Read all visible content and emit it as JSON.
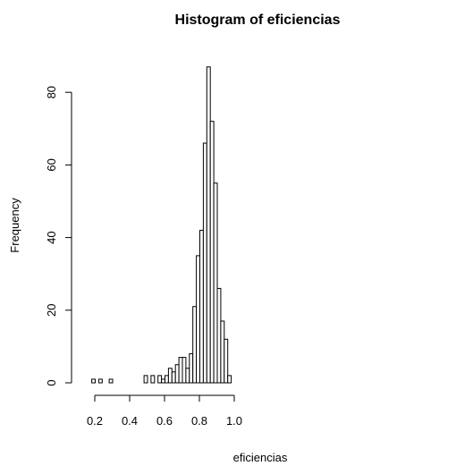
{
  "chart_data": {
    "type": "bar",
    "title": "Histogram of eficiencias",
    "xlabel": "eficiencias",
    "ylabel": "Frequency",
    "xlim": [
      0.18,
      0.98
    ],
    "ylim": [
      0,
      87
    ],
    "bin_width": 0.02,
    "bins": [
      {
        "x0": 0.18,
        "x1": 0.2,
        "count": 1
      },
      {
        "x0": 0.2,
        "x1": 0.22,
        "count": 0
      },
      {
        "x0": 0.22,
        "x1": 0.24,
        "count": 1
      },
      {
        "x0": 0.24,
        "x1": 0.26,
        "count": 0
      },
      {
        "x0": 0.26,
        "x1": 0.28,
        "count": 0
      },
      {
        "x0": 0.28,
        "x1": 0.3,
        "count": 1
      },
      {
        "x0": 0.3,
        "x1": 0.32,
        "count": 0
      },
      {
        "x0": 0.32,
        "x1": 0.34,
        "count": 0
      },
      {
        "x0": 0.34,
        "x1": 0.36,
        "count": 0
      },
      {
        "x0": 0.36,
        "x1": 0.38,
        "count": 0
      },
      {
        "x0": 0.38,
        "x1": 0.4,
        "count": 0
      },
      {
        "x0": 0.4,
        "x1": 0.42,
        "count": 0
      },
      {
        "x0": 0.42,
        "x1": 0.44,
        "count": 0
      },
      {
        "x0": 0.44,
        "x1": 0.46,
        "count": 0
      },
      {
        "x0": 0.46,
        "x1": 0.48,
        "count": 0
      },
      {
        "x0": 0.48,
        "x1": 0.5,
        "count": 2
      },
      {
        "x0": 0.5,
        "x1": 0.52,
        "count": 0
      },
      {
        "x0": 0.52,
        "x1": 0.54,
        "count": 2
      },
      {
        "x0": 0.54,
        "x1": 0.56,
        "count": 0
      },
      {
        "x0": 0.56,
        "x1": 0.58,
        "count": 2
      },
      {
        "x0": 0.58,
        "x1": 0.6,
        "count": 1
      },
      {
        "x0": 0.6,
        "x1": 0.62,
        "count": 2
      },
      {
        "x0": 0.62,
        "x1": 0.64,
        "count": 4
      },
      {
        "x0": 0.64,
        "x1": 0.66,
        "count": 3
      },
      {
        "x0": 0.66,
        "x1": 0.68,
        "count": 5
      },
      {
        "x0": 0.68,
        "x1": 0.7,
        "count": 7
      },
      {
        "x0": 0.7,
        "x1": 0.72,
        "count": 7
      },
      {
        "x0": 0.72,
        "x1": 0.74,
        "count": 4
      },
      {
        "x0": 0.74,
        "x1": 0.76,
        "count": 8
      },
      {
        "x0": 0.76,
        "x1": 0.78,
        "count": 21
      },
      {
        "x0": 0.78,
        "x1": 0.8,
        "count": 35
      },
      {
        "x0": 0.8,
        "x1": 0.82,
        "count": 42
      },
      {
        "x0": 0.82,
        "x1": 0.84,
        "count": 66
      },
      {
        "x0": 0.84,
        "x1": 0.86,
        "count": 87
      },
      {
        "x0": 0.86,
        "x1": 0.88,
        "count": 72
      },
      {
        "x0": 0.88,
        "x1": 0.9,
        "count": 55
      },
      {
        "x0": 0.9,
        "x1": 0.92,
        "count": 26
      },
      {
        "x0": 0.92,
        "x1": 0.94,
        "count": 17
      },
      {
        "x0": 0.94,
        "x1": 0.96,
        "count": 12
      },
      {
        "x0": 0.96,
        "x1": 0.98,
        "count": 2
      }
    ],
    "x_ticks": [
      0.2,
      0.4,
      0.6,
      0.8,
      1.0
    ],
    "x_tick_labels": [
      "0.2",
      "0.4",
      "0.6",
      "0.8",
      "1.0"
    ],
    "y_ticks": [
      0,
      20,
      40,
      60,
      80
    ],
    "y_tick_labels": [
      "0",
      "20",
      "40",
      "60",
      "80"
    ],
    "grid": false,
    "bar_fill": "#ffffff",
    "bar_stroke": "#000000"
  }
}
